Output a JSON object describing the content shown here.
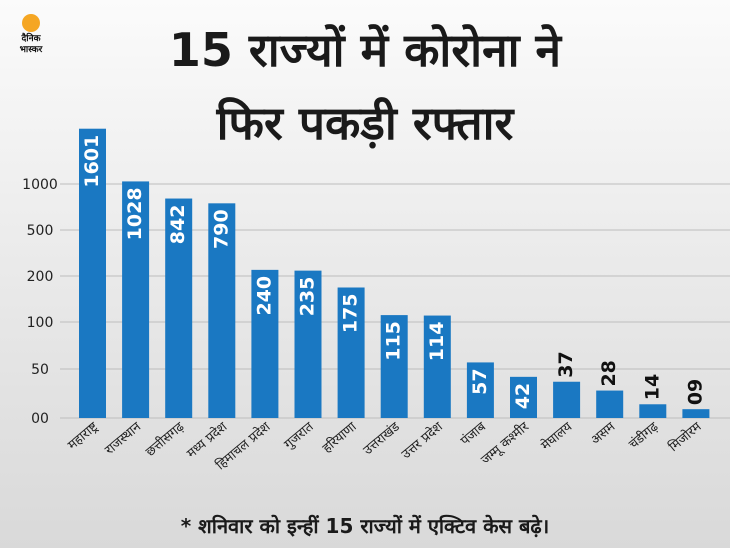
{
  "brand": {
    "logo_text": "दैनिक\nभास्कर"
  },
  "title_line1": "15 राज्यों में कोरोना ने",
  "title_line2": "फिर पकड़ी रफ्तार",
  "footnote": "* शनिवार को इन्हीं 15 राज्यों में एक्टिव केस बढ़े।",
  "colors": {
    "bar": "#1a78c2",
    "bar_label": "#ffffff",
    "bar_label_dark": "#111111",
    "grid": "#bdbdbd",
    "text": "#222222"
  },
  "chart_data": {
    "type": "bar",
    "title": "15 राज्यों में कोरोना ने फिर पकड़ी रफ्तार",
    "categories": [
      "महाराष्ट्र",
      "राजस्थान",
      "छत्तीसगढ़",
      "मध्य प्रदेश",
      "हिमाचल प्रदेश",
      "गुजरात",
      "हरियाणा",
      "उत्तराखंड",
      "उत्तर प्रदेश",
      "पंजाब",
      "जम्मू कश्मीर",
      "मेघालय",
      "असम",
      "चंडीगढ़",
      "मिजोरम"
    ],
    "values": [
      1601,
      1028,
      842,
      790,
      240,
      235,
      175,
      115,
      114,
      57,
      42,
      37,
      28,
      14,
      9
    ],
    "value_labels": [
      "1601",
      "1028",
      "842",
      "790",
      "240",
      "235",
      "175",
      "115",
      "114",
      "57",
      "42",
      "37",
      "28",
      "14",
      "09"
    ],
    "yticks": [
      "00",
      "50",
      "100",
      "200",
      "500",
      "1000"
    ],
    "grid": true,
    "axis_scale": "non-linear (00, 50, 100, 200, 500, 1000)"
  }
}
